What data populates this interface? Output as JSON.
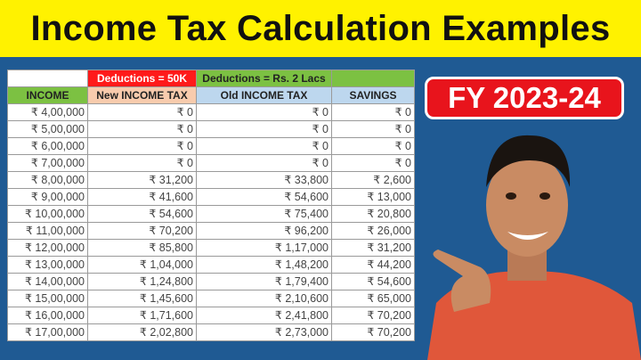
{
  "title": "Income Tax Calculation Examples",
  "badge": "FY 2023-24",
  "table": {
    "group_headers": [
      "",
      "Deductions = 50K",
      "Deductions = Rs. 2 Lacs",
      ""
    ],
    "headers": [
      "INCOME",
      "New INCOME TAX",
      "Old INCOME TAX",
      "SAVINGS"
    ],
    "rows": [
      [
        "₹ 4,00,000",
        "₹ 0",
        "₹ 0",
        "₹ 0"
      ],
      [
        "₹ 5,00,000",
        "₹ 0",
        "₹ 0",
        "₹ 0"
      ],
      [
        "₹ 6,00,000",
        "₹ 0",
        "₹ 0",
        "₹ 0"
      ],
      [
        "₹ 7,00,000",
        "₹ 0",
        "₹ 0",
        "₹ 0"
      ],
      [
        "₹ 8,00,000",
        "₹ 31,200",
        "₹ 33,800",
        "₹ 2,600"
      ],
      [
        "₹ 9,00,000",
        "₹ 41,600",
        "₹ 54,600",
        "₹ 13,000"
      ],
      [
        "₹ 10,00,000",
        "₹ 54,600",
        "₹ 75,400",
        "₹ 20,800"
      ],
      [
        "₹ 11,00,000",
        "₹ 70,200",
        "₹ 96,200",
        "₹ 26,000"
      ],
      [
        "₹ 12,00,000",
        "₹ 85,800",
        "₹ 1,17,000",
        "₹ 31,200"
      ],
      [
        "₹ 13,00,000",
        "₹ 1,04,000",
        "₹ 1,48,200",
        "₹ 44,200"
      ],
      [
        "₹ 14,00,000",
        "₹ 1,24,800",
        "₹ 1,79,400",
        "₹ 54,600"
      ],
      [
        "₹ 15,00,000",
        "₹ 1,45,600",
        "₹ 2,10,600",
        "₹ 65,000"
      ],
      [
        "₹ 16,00,000",
        "₹ 1,71,600",
        "₹ 2,41,800",
        "₹ 70,200"
      ],
      [
        "₹ 17,00,000",
        "₹ 2,02,800",
        "₹ 2,73,000",
        "₹ 70,200"
      ]
    ]
  },
  "colors": {
    "title_bg": "#fff200",
    "background": "#1f5a93",
    "badge": "#e8141c",
    "deduction_new": "#ff1a1a",
    "deduction_old": "#7cc142"
  }
}
